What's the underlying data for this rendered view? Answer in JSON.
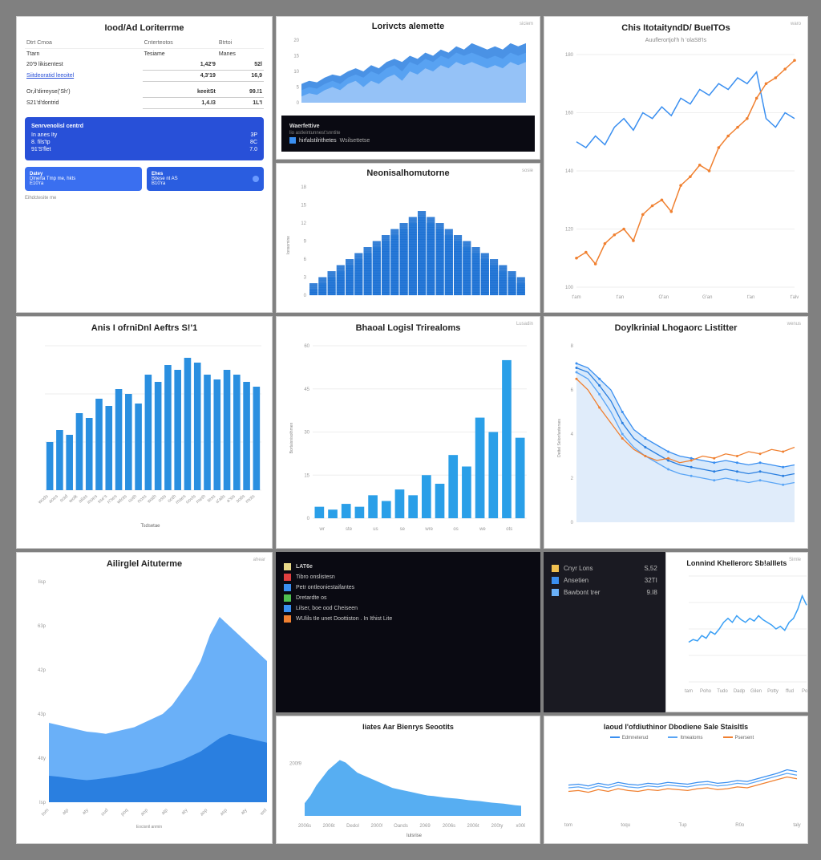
{
  "colors": {
    "bg": "#808080",
    "panel": "#ffffff",
    "border": "#d0d0d0",
    "blue": "#3a8ff0",
    "blue2": "#2a7fe0",
    "blue3": "#5aa5f5",
    "bluefill": "#6ab0f8",
    "darkblue": "#2850d8",
    "orange": "#f08030",
    "grid": "#e8e8e8",
    "text": "#333",
    "textmute": "#888",
    "dark": "#0a0a12"
  },
  "A": {
    "title": "Iood/Ad Loriterrme",
    "cols": [
      "Dtrt Cmoa",
      "Cnterteotos",
      "Btrtoi"
    ],
    "rows": [
      [
        "Ttarn",
        "Tesiame",
        "Manes"
      ],
      [
        "20'9 likisentest",
        "1,42'9",
        "52l"
      ],
      [
        "Siitdeoratid leeoitel",
        "4,3'19",
        "16,9"
      ],
      [
        "Or,il'dirreyse('Sh')",
        "keeitSt",
        "99.!1"
      ],
      [
        "S21'd'dontrid",
        "1,4.I3",
        "1L'I"
      ]
    ],
    "card": {
      "t": "Senrvenolisl centrd",
      "r": [
        [
          "In anes Ity",
          "3P"
        ],
        [
          "8. fils'tp",
          "8C"
        ],
        [
          "91'S'flet",
          "7.0"
        ]
      ]
    },
    "pill1": {
      "t": "Datey",
      "l1": "Dlnerta Tmp me, hkts",
      "l2": "E10'ra"
    },
    "pill2": {
      "t": "Ehes",
      "l1": "Bitese nt AS",
      "l2": "B10'ra"
    },
    "foot": "Eihdctesite me"
  },
  "B1": {
    "title": "Lorivcts alemette",
    "corner": "siciem",
    "ylim": [
      0,
      20
    ],
    "pts": 30,
    "s1": [
      6,
      7,
      6.5,
      8,
      9,
      8.5,
      10,
      11,
      10,
      12,
      11,
      13,
      14,
      13,
      15,
      14,
      16,
      15,
      17,
      16,
      18,
      17,
      19,
      18,
      17,
      18,
      17,
      19,
      18,
      19
    ],
    "s2": [
      4,
      5,
      4.5,
      6,
      7,
      6,
      8,
      9,
      8,
      10,
      9,
      11,
      12,
      10,
      13,
      12,
      14,
      13,
      15,
      14,
      16,
      15,
      16,
      15,
      14,
      15,
      14,
      16,
      15,
      16
    ],
    "s3": [
      2,
      3,
      2.5,
      4,
      5,
      4,
      6,
      7,
      5,
      7,
      6,
      8,
      9,
      7,
      10,
      9,
      11,
      10,
      12,
      11,
      13,
      12,
      13,
      12,
      11,
      12,
      11,
      13,
      12,
      13
    ],
    "c1": "#2a7fe0",
    "c2": "#5aa5f5",
    "c3": "#a0c8f8",
    "dark": {
      "t": "Waerfettive",
      "l1": "lio astleintunnest'snntite",
      "leg1": "hirfalstilrithetes",
      "leg2": "Wsilsettetse",
      "sq1": "#3a8ff0",
      "sq2": "#e0e0e0"
    }
  },
  "B2": {
    "title": "Neonisalhomutorne",
    "corner": "sosie",
    "ylim": [
      0,
      18
    ],
    "xlim": [
      0,
      24
    ],
    "bars": 24,
    "layers": [
      {
        "c": "#1a6fd0",
        "v": [
          2,
          3,
          4,
          5,
          6,
          7,
          8,
          9,
          10,
          11,
          12,
          13,
          14,
          13,
          12,
          11,
          10,
          9,
          8,
          7,
          6,
          5,
          4,
          3
        ]
      },
      {
        "c": "#3a8ff0",
        "v": [
          1,
          2,
          3,
          4,
          5,
          6,
          7,
          8,
          9,
          10,
          11,
          12,
          13,
          12,
          11,
          10,
          9,
          8,
          7,
          6,
          5,
          4,
          3,
          2
        ]
      },
      {
        "c": "#6ab0f8",
        "v": [
          1,
          1,
          2,
          3,
          4,
          5,
          6,
          7,
          8,
          9,
          10,
          11,
          12,
          11,
          10,
          9,
          8,
          7,
          6,
          5,
          4,
          3,
          2,
          1
        ]
      },
      {
        "c": "#a0d0fa",
        "v": [
          0,
          1,
          1,
          2,
          3,
          4,
          5,
          6,
          7,
          8,
          9,
          10,
          11,
          10,
          9,
          8,
          7,
          6,
          5,
          4,
          3,
          2,
          1,
          1
        ]
      }
    ],
    "ylabel": "Ionsomine"
  },
  "C": {
    "title": "Chis ItotaityndD/ BueITOs",
    "sub": "Auuflerortjol'h h 'olaS8'Is",
    "corner": "waro",
    "ylim": [
      100,
      180
    ],
    "xcats": [
      "t'am",
      "t'an",
      "O'an",
      "G'an",
      "t'an",
      "t'alv"
    ],
    "blue": [
      150,
      148,
      152,
      149,
      155,
      158,
      154,
      160,
      158,
      162,
      159,
      165,
      163,
      168,
      166,
      170,
      168,
      172,
      170,
      174,
      158,
      155,
      160,
      158
    ],
    "orange": [
      110,
      112,
      108,
      115,
      118,
      120,
      116,
      125,
      128,
      130,
      126,
      135,
      138,
      142,
      140,
      148,
      152,
      155,
      158,
      165,
      170,
      172,
      175,
      178
    ],
    "cb": "#3a8ff0",
    "co": "#f08030"
  },
  "D": {
    "title": "Anis I ofrniDnl Aeftrs S!'1",
    "ylim": [
      0,
      60
    ],
    "bars": 22,
    "v": [
      20,
      25,
      23,
      32,
      30,
      38,
      35,
      42,
      40,
      36,
      48,
      45,
      52,
      50,
      55,
      53,
      48,
      46,
      50,
      48,
      45,
      43
    ],
    "xcats": [
      "wods",
      "aoes",
      "soid",
      "wolk",
      "ailas",
      "inoes",
      "sse's",
      "n'ses",
      "wtots",
      "ooth",
      "noss",
      "wath",
      "osts",
      "ooth",
      "maes",
      "oovls",
      "meth",
      "tess",
      "a'alls",
      "a'sis",
      "sotls",
      "mots"
    ],
    "c": "#2a8fe0",
    "leg": "Tsdsetae"
  },
  "E": {
    "title": "Bhaoal Logisl Trirealoms",
    "corner": "Lusadin",
    "ylim": [
      0,
      60
    ],
    "bars": 16,
    "v": [
      4,
      3,
      5,
      4,
      8,
      6,
      10,
      8,
      15,
      12,
      22,
      18,
      35,
      30,
      55,
      28
    ],
    "xcats": [
      "wr",
      "ste",
      "us",
      "se",
      "wre",
      "os",
      "we",
      "ots"
    ],
    "c": "#2a9fe8",
    "ylabel": "Bortaisnisothmen"
  },
  "F": {
    "title": "Doylkrinial Lhogaorc Listitter",
    "corner": "wenus",
    "ylim": [
      0,
      8
    ],
    "s1": [
      7.2,
      7.0,
      6.5,
      6.0,
      5.0,
      4.2,
      3.8,
      3.5,
      3.2,
      3.0,
      2.9,
      2.8,
      2.7,
      2.8,
      2.7,
      2.6,
      2.7,
      2.6,
      2.5,
      2.6
    ],
    "s2": [
      7.0,
      6.8,
      6.2,
      5.5,
      4.5,
      3.8,
      3.4,
      3.1,
      2.8,
      2.6,
      2.5,
      2.4,
      2.3,
      2.4,
      2.3,
      2.2,
      2.3,
      2.2,
      2.1,
      2.2
    ],
    "s3": [
      6.8,
      6.5,
      5.8,
      5.0,
      4.0,
      3.4,
      3.0,
      2.7,
      2.4,
      2.2,
      2.1,
      2.0,
      1.9,
      2.0,
      1.9,
      1.8,
      1.9,
      1.8,
      1.7,
      1.8
    ],
    "so": [
      6.5,
      6.0,
      5.2,
      4.5,
      3.8,
      3.3,
      3.0,
      2.8,
      2.9,
      2.7,
      2.8,
      3.0,
      2.9,
      3.1,
      3.0,
      3.2,
      3.1,
      3.3,
      3.2,
      3.4
    ],
    "fillA": "#c8e0fa",
    "fillB": "#e0ecfa",
    "cb1": "#3a8ff0",
    "cb2": "#2a7fe0",
    "cb3": "#5aa5f5",
    "co": "#f08030",
    "ylabel": "Dettel Selonfanterses"
  },
  "G": {
    "title": "LAT6e",
    "items": [
      {
        "c": "#e8d888",
        "t": "LAT6e"
      },
      {
        "c": "#e04040",
        "t": "Tibro onslistesn"
      },
      {
        "c": "#3a8ff0",
        "t": "Petr ontleoniestaifantes"
      },
      {
        "c": "#50c050",
        "t": "Dretardte os"
      },
      {
        "c": "#3a8ff0",
        "t": "Lilser, boe ood Cheiseen"
      },
      {
        "c": "#f08030",
        "t": "WUlils tIe unet Doottiston . In Ithist Lite"
      }
    ]
  },
  "H": {
    "items": [
      {
        "c": "#f0c050",
        "t": "Cnyr Lons",
        "v": "S,52"
      },
      {
        "c": "#3a8ff0",
        "t": "Ansetien",
        "v": "32TI"
      },
      {
        "c": "#6ab0f8",
        "t": "Bawbont trer",
        "v": "9.I8"
      }
    ]
  },
  "I": {
    "title": "Lonnind Khellerorc Sb!alllets",
    "corner": "Simle",
    "ylim": [
      0,
      8
    ],
    "v": [
      3.0,
      3.2,
      3.1,
      3.5,
      3.3,
      3.8,
      3.6,
      4.0,
      4.5,
      4.8,
      4.5,
      5.0,
      4.7,
      4.5,
      4.8,
      4.6,
      5.0,
      4.7,
      4.5,
      4.3,
      4.0,
      4.2,
      3.9,
      4.5,
      4.8,
      5.5,
      6.5,
      5.8
    ],
    "xcats": [
      "tam",
      "Poho",
      "Tudo",
      "Dadp",
      "Gilen",
      "Potty",
      "ffud",
      "Poin"
    ],
    "c": "#3a9ff5"
  },
  "J": {
    "title": "Ailirglel Aituterme",
    "corner": "ahear",
    "ylim": [
      0,
      500
    ],
    "bg": [
      180,
      175,
      170,
      165,
      160,
      158,
      155,
      160,
      165,
      170,
      180,
      190,
      200,
      220,
      250,
      280,
      320,
      380,
      420,
      400,
      380,
      360,
      340,
      320
    ],
    "fg": [
      60,
      58,
      55,
      52,
      50,
      52,
      55,
      58,
      62,
      65,
      70,
      75,
      80,
      88,
      95,
      105,
      115,
      130,
      145,
      155,
      150,
      145,
      140,
      135
    ],
    "cbg": "#6ab0f8",
    "cfg": "#2a7fe0",
    "yticks": [
      "Isp",
      "4tty",
      "43p",
      "42p",
      "63p",
      "Iisp"
    ],
    "xcats": [
      "tom",
      "atp",
      "aty",
      "oud",
      "poq",
      "aop",
      "atp",
      "aty",
      "aop",
      "asp",
      "aty",
      "wel"
    ],
    "xlabel": "Eocisnil anmin"
  },
  "K": {
    "title": "liates Aar Bienrys Seootits",
    "ylim": [
      0,
      300
    ],
    "v": [
      50,
      80,
      120,
      150,
      180,
      200,
      220,
      210,
      190,
      170,
      160,
      150,
      140,
      130,
      120,
      110,
      105,
      100,
      95,
      90,
      85,
      80,
      78,
      75,
      72,
      70,
      68,
      65,
      62,
      60,
      58,
      55,
      52,
      50,
      48,
      45,
      42,
      40
    ],
    "xcats": [
      "2006s",
      "2006t",
      "Dedol",
      "2000!",
      "Oands",
      "2069",
      "2006s",
      "2006t",
      "200ty",
      "x006"
    ],
    "c": "#3aa0f0",
    "leg": "Iulsrise"
  },
  "L": {
    "title": "laoud I'ofdiuthinor Dbodiene Sale Staisltls",
    "ylim": [
      0,
      8
    ],
    "s1": [
      3.5,
      3.6,
      3.4,
      3.7,
      3.5,
      3.8,
      3.6,
      3.5,
      3.7,
      3.6,
      3.8,
      3.7,
      3.6,
      3.8,
      3.9,
      3.7,
      3.8,
      4.0,
      3.9,
      4.2,
      4.5,
      4.8,
      5.2,
      5.0
    ],
    "s2": [
      3.2,
      3.3,
      3.1,
      3.4,
      3.2,
      3.5,
      3.3,
      3.2,
      3.4,
      3.3,
      3.5,
      3.4,
      3.3,
      3.5,
      3.6,
      3.4,
      3.5,
      3.7,
      3.6,
      3.9,
      4.2,
      4.5,
      4.8,
      4.6
    ],
    "s3": [
      2.8,
      2.9,
      2.7,
      3.0,
      2.8,
      3.1,
      2.9,
      2.8,
      3.0,
      2.9,
      3.1,
      3.0,
      2.9,
      3.1,
      3.2,
      3.0,
      3.1,
      3.3,
      3.2,
      3.5,
      3.8,
      4.1,
      4.4,
      4.2
    ],
    "c1": "#3a8ff0",
    "c2": "#5aa5f5",
    "c3": "#f08030",
    "xcats": [
      "tom",
      "toqu",
      "Tup",
      "R0o",
      "taly"
    ],
    "leg": [
      "Edmneterud",
      "Itmeatoms",
      "Psersent"
    ]
  }
}
